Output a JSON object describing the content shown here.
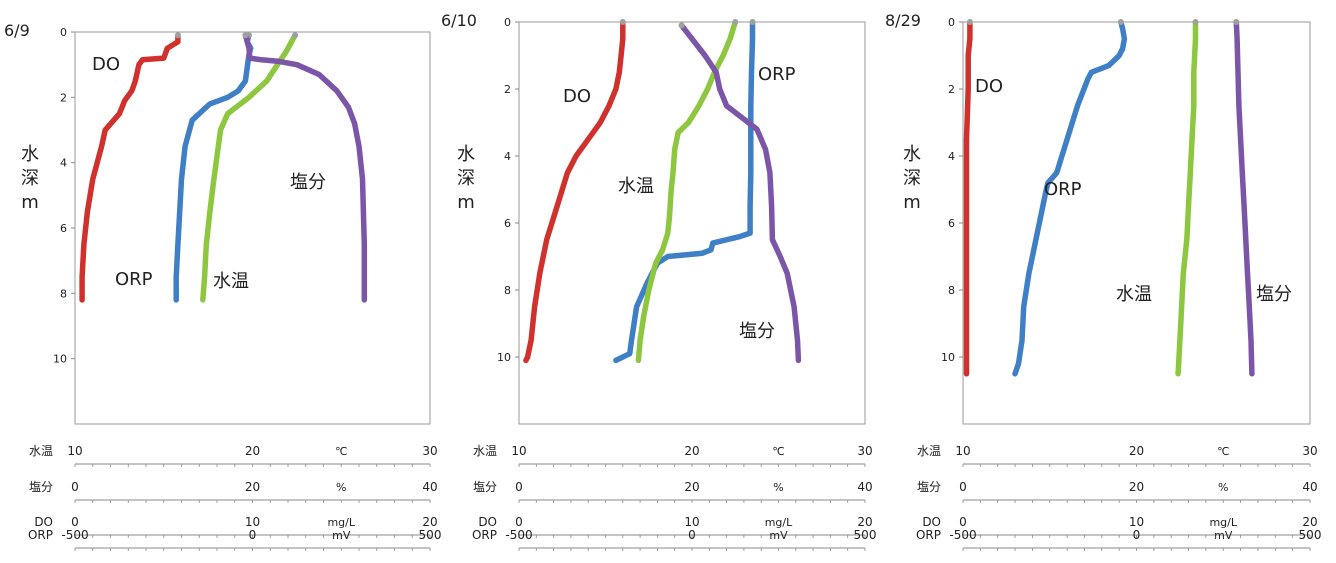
{
  "colors": {
    "DO": "#d0312d",
    "ORP": "#3f7fc6",
    "水温": "#8dc63f",
    "塩分": "#7b55a8",
    "axis": "#8a8a8a",
    "plot_border": "#9a9a9a"
  },
  "depth_axis": {
    "label": [
      "水",
      "深",
      "m"
    ],
    "range": [
      0,
      12
    ],
    "ticks": [
      0,
      2,
      4,
      6,
      8,
      10
    ]
  },
  "bottom_axes": [
    {
      "key": "水温",
      "name": "水温",
      "range": [
        10,
        30
      ],
      "ticks": [
        10,
        20,
        30
      ],
      "unit": "℃",
      "tick_step": 1
    },
    {
      "key": "塩分",
      "name": "塩分",
      "range": [
        0,
        40
      ],
      "ticks": [
        0,
        20,
        40
      ],
      "unit": "%",
      "tick_step": 2
    },
    {
      "key": "DO",
      "name": "DO",
      "range": [
        0,
        20
      ],
      "ticks": [
        0,
        10,
        20
      ],
      "unit": "mg/L",
      "tick_step": 1
    },
    {
      "key": "ORP",
      "name": "ORP",
      "range": [
        -500,
        500
      ],
      "ticks": [
        -500,
        0,
        500
      ],
      "unit": "mV",
      "tick_step": 50
    }
  ],
  "chart_data": [
    {
      "type": "line",
      "date": "6/9",
      "y_label": "水深m",
      "y_range": [
        0,
        12
      ],
      "y_inverted": true,
      "series": [
        {
          "name": "DO",
          "label": "DO",
          "unit": "mg/L",
          "x_range": [
            0,
            20
          ],
          "points": [
            [
              5.8,
              0.1
            ],
            [
              5.8,
              0.3
            ],
            [
              5.5,
              0.4
            ],
            [
              5.2,
              0.5
            ],
            [
              5.0,
              0.8
            ],
            [
              3.8,
              0.85
            ],
            [
              3.6,
              1.0
            ],
            [
              3.4,
              1.5
            ],
            [
              3.2,
              1.8
            ],
            [
              2.8,
              2.1
            ],
            [
              2.5,
              2.5
            ],
            [
              1.7,
              3.0
            ],
            [
              1.5,
              3.5
            ],
            [
              1.0,
              4.5
            ],
            [
              0.7,
              5.5
            ],
            [
              0.5,
              6.5
            ],
            [
              0.4,
              7.5
            ],
            [
              0.4,
              8.2
            ]
          ]
        },
        {
          "name": "ORP",
          "label": "ORP",
          "unit": "mV",
          "x_range": [
            -500,
            500
          ],
          "points": [
            [
              -10,
              0.1
            ],
            [
              -15,
              0.3
            ],
            [
              -5,
              0.5
            ],
            [
              -10,
              0.7
            ],
            [
              -20,
              1.5
            ],
            [
              -40,
              1.8
            ],
            [
              -70,
              2.0
            ],
            [
              -120,
              2.2
            ],
            [
              -140,
              2.4
            ],
            [
              -170,
              2.7
            ],
            [
              -190,
              3.5
            ],
            [
              -200,
              4.5
            ],
            [
              -205,
              5.5
            ],
            [
              -210,
              6.5
            ],
            [
              -215,
              7.5
            ],
            [
              -215,
              8.2
            ]
          ]
        },
        {
          "name": "水温",
          "label": "水温",
          "unit": "℃",
          "x_range": [
            10,
            30
          ],
          "points": [
            [
              22.4,
              0.1
            ],
            [
              22.2,
              0.3
            ],
            [
              21.9,
              0.6
            ],
            [
              21.4,
              1.0
            ],
            [
              20.8,
              1.5
            ],
            [
              19.8,
              2.0
            ],
            [
              18.6,
              2.5
            ],
            [
              18.2,
              3.0
            ],
            [
              18.0,
              3.8
            ],
            [
              17.8,
              4.6
            ],
            [
              17.6,
              5.5
            ],
            [
              17.4,
              6.5
            ],
            [
              17.3,
              7.5
            ],
            [
              17.2,
              8.2
            ]
          ]
        },
        {
          "name": "塩分",
          "label": "塩分",
          "unit": "%",
          "x_range": [
            0,
            40
          ],
          "points": [
            [
              19.2,
              0.1
            ],
            [
              19.4,
              0.3
            ],
            [
              19.6,
              0.5
            ],
            [
              19.7,
              0.8
            ],
            [
              21.0,
              0.85
            ],
            [
              23.0,
              0.9
            ],
            [
              25.0,
              1.0
            ],
            [
              27.5,
              1.3
            ],
            [
              29.5,
              1.8
            ],
            [
              30.8,
              2.3
            ],
            [
              31.5,
              2.8
            ],
            [
              32.0,
              3.5
            ],
            [
              32.4,
              4.5
            ],
            [
              32.5,
              5.5
            ],
            [
              32.6,
              6.5
            ],
            [
              32.6,
              7.5
            ],
            [
              32.6,
              8.2
            ]
          ]
        }
      ]
    },
    {
      "type": "line",
      "date": "6/10",
      "y_label": "水深m",
      "y_range": [
        0,
        12
      ],
      "y_inverted": true,
      "series": [
        {
          "name": "DO",
          "label": "DO",
          "unit": "mg/L",
          "x_range": [
            0,
            20
          ],
          "points": [
            [
              6.0,
              0.0
            ],
            [
              6.0,
              0.5
            ],
            [
              5.9,
              1.0
            ],
            [
              5.8,
              1.5
            ],
            [
              5.6,
              2.0
            ],
            [
              5.2,
              2.5
            ],
            [
              4.7,
              3.0
            ],
            [
              4.0,
              3.5
            ],
            [
              3.3,
              4.0
            ],
            [
              2.8,
              4.5
            ],
            [
              2.2,
              5.5
            ],
            [
              1.6,
              6.5
            ],
            [
              1.2,
              7.5
            ],
            [
              0.9,
              8.5
            ],
            [
              0.7,
              9.5
            ],
            [
              0.5,
              10.0
            ],
            [
              0.4,
              10.1
            ]
          ]
        },
        {
          "name": "ORP",
          "label": "ORP",
          "unit": "mV",
          "x_range": [
            -500,
            500
          ],
          "points": [
            [
              175,
              0.0
            ],
            [
              175,
              0.5
            ],
            [
              172,
              1.5
            ],
            [
              170,
              2.5
            ],
            [
              170,
              3.5
            ],
            [
              170,
              4.5
            ],
            [
              168,
              5.5
            ],
            [
              168,
              6.3
            ],
            [
              140,
              6.4
            ],
            [
              60,
              6.6
            ],
            [
              55,
              6.8
            ],
            [
              30,
              6.9
            ],
            [
              -70,
              7.0
            ],
            [
              -100,
              7.2
            ],
            [
              -130,
              7.8
            ],
            [
              -160,
              8.5
            ],
            [
              -175,
              9.5
            ],
            [
              -180,
              9.9
            ],
            [
              -200,
              10.0
            ],
            [
              -220,
              10.1
            ]
          ]
        },
        {
          "name": "水温",
          "label": "水温",
          "unit": "℃",
          "x_range": [
            10,
            30
          ],
          "points": [
            [
              22.5,
              0.0
            ],
            [
              22.2,
              0.5
            ],
            [
              21.8,
              1.0
            ],
            [
              21.3,
              1.5
            ],
            [
              20.9,
              2.0
            ],
            [
              20.4,
              2.5
            ],
            [
              19.8,
              3.0
            ],
            [
              19.2,
              3.3
            ],
            [
              19.0,
              3.8
            ],
            [
              18.9,
              4.5
            ],
            [
              18.8,
              5.0
            ],
            [
              18.7,
              5.8
            ],
            [
              18.6,
              6.3
            ],
            [
              18.3,
              6.8
            ],
            [
              17.9,
              7.2
            ],
            [
              17.5,
              8.0
            ],
            [
              17.2,
              8.8
            ],
            [
              17.0,
              9.5
            ],
            [
              16.9,
              10.1
            ]
          ]
        },
        {
          "name": "塩分",
          "label": "塩分",
          "unit": "%",
          "x_range": [
            0,
            40
          ],
          "points": [
            [
              18.8,
              0.1
            ],
            [
              20.0,
              0.5
            ],
            [
              21.5,
              1.0
            ],
            [
              22.8,
              1.5
            ],
            [
              23.2,
              2.0
            ],
            [
              24.0,
              2.5
            ],
            [
              25.5,
              2.8
            ],
            [
              27.5,
              3.2
            ],
            [
              28.5,
              3.8
            ],
            [
              29.0,
              4.5
            ],
            [
              29.2,
              5.5
            ],
            [
              29.3,
              6.5
            ],
            [
              30.2,
              7.0
            ],
            [
              31.0,
              7.5
            ],
            [
              31.8,
              8.5
            ],
            [
              32.0,
              9.0
            ],
            [
              32.2,
              9.5
            ],
            [
              32.3,
              10.1
            ]
          ]
        }
      ]
    },
    {
      "type": "line",
      "date": "8/29",
      "y_label": "水深m",
      "y_range": [
        0,
        12
      ],
      "y_inverted": true,
      "series": [
        {
          "name": "DO",
          "label": "DO",
          "unit": "mg/L",
          "x_range": [
            0,
            20
          ],
          "points": [
            [
              0.4,
              0.0
            ],
            [
              0.4,
              0.5
            ],
            [
              0.3,
              1.0
            ],
            [
              0.3,
              2.0
            ],
            [
              0.2,
              3.5
            ],
            [
              0.2,
              5.0
            ],
            [
              0.2,
              6.5
            ],
            [
              0.2,
              8.0
            ],
            [
              0.2,
              9.5
            ],
            [
              0.2,
              10.5
            ]
          ]
        },
        {
          "name": "ORP",
          "label": "ORP",
          "unit": "mV",
          "x_range": [
            -500,
            500
          ],
          "points": [
            [
              -45,
              0.0
            ],
            [
              -40,
              0.2
            ],
            [
              -35,
              0.5
            ],
            [
              -40,
              0.8
            ],
            [
              -50,
              1.0
            ],
            [
              -80,
              1.3
            ],
            [
              -130,
              1.5
            ],
            [
              -140,
              1.7
            ],
            [
              -170,
              2.5
            ],
            [
              -200,
              3.5
            ],
            [
              -230,
              4.5
            ],
            [
              -255,
              4.8
            ],
            [
              -260,
              5.0
            ],
            [
              -270,
              5.5
            ],
            [
              -290,
              6.5
            ],
            [
              -310,
              7.5
            ],
            [
              -325,
              8.5
            ],
            [
              -330,
              9.5
            ],
            [
              -340,
              10.2
            ],
            [
              -350,
              10.5
            ]
          ]
        },
        {
          "name": "水温",
          "label": "水温",
          "unit": "℃",
          "x_range": [
            10,
            30
          ],
          "points": [
            [
              23.4,
              0.0
            ],
            [
              23.4,
              0.5
            ],
            [
              23.3,
              1.5
            ],
            [
              23.3,
              2.5
            ],
            [
              23.2,
              3.5
            ],
            [
              23.1,
              4.5
            ],
            [
              23.0,
              5.5
            ],
            [
              22.9,
              6.5
            ],
            [
              22.7,
              7.5
            ],
            [
              22.6,
              8.5
            ],
            [
              22.5,
              9.5
            ],
            [
              22.4,
              10.5
            ]
          ]
        },
        {
          "name": "塩分",
          "label": "塩分",
          "unit": "%",
          "x_range": [
            0,
            40
          ],
          "points": [
            [
              31.5,
              0.0
            ],
            [
              31.6,
              0.5
            ],
            [
              31.7,
              1.5
            ],
            [
              31.8,
              2.5
            ],
            [
              32.0,
              3.5
            ],
            [
              32.2,
              4.5
            ],
            [
              32.4,
              5.5
            ],
            [
              32.6,
              6.5
            ],
            [
              32.8,
              7.5
            ],
            [
              33.0,
              8.5
            ],
            [
              33.2,
              9.5
            ],
            [
              33.3,
              10.5
            ]
          ]
        }
      ]
    }
  ]
}
